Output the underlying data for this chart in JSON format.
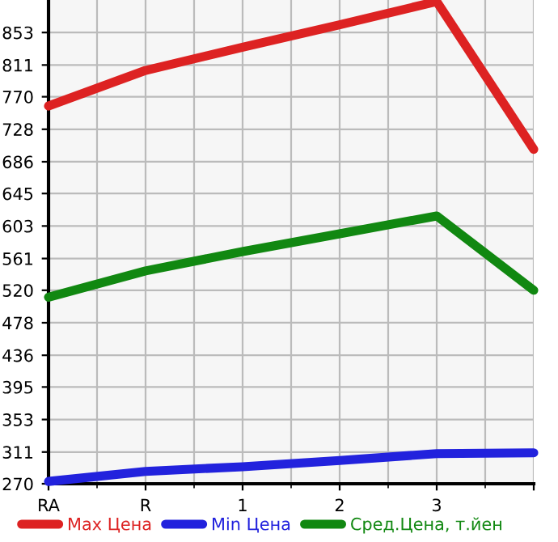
{
  "chart_data": {
    "type": "line",
    "categories": [
      "RA",
      "R",
      "1",
      "2",
      "3",
      null
    ],
    "series": [
      {
        "name": "Max Цена",
        "color": "#dd2222",
        "values": [
          758,
          804,
          834,
          863,
          893,
          702
        ]
      },
      {
        "name": "Min Цена",
        "color": "#2222dd",
        "values": [
          273,
          286,
          292,
          300,
          309,
          310
        ]
      },
      {
        "name": "Сред.Цена, т.йен",
        "color": "#118811",
        "values": [
          511,
          545,
          570,
          593,
          616,
          520
        ]
      }
    ],
    "ylim": [
      270,
      895
    ],
    "yticks": [
      270,
      311,
      353,
      395,
      436,
      478,
      520,
      561,
      603,
      645,
      686,
      728,
      770,
      811,
      853
    ],
    "grid": true,
    "legend": "bottom",
    "marker": "none",
    "line_style": "solid"
  }
}
